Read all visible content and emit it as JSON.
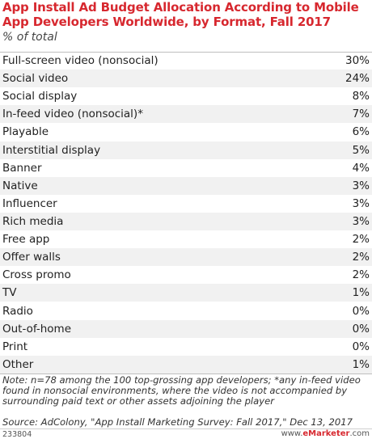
{
  "title": "App Install Ad Budget Allocation According to Mobile App Developers Worldwide, by Format, Fall 2017",
  "subtitle": "% of total",
  "chart_data": {
    "type": "table",
    "title": "App Install Ad Budget Allocation According to Mobile App Developers Worldwide, by Format, Fall 2017",
    "subtitle": "% of total",
    "unit": "%",
    "categories": [
      "Full-screen video (nonsocial)",
      "Social video",
      "Social display",
      "In-feed video (nonsocial)*",
      "Playable",
      "Interstitial display",
      "Banner",
      "Native",
      "Influencer",
      "Rich media",
      "Free app",
      "Offer walls",
      "Cross promo",
      "TV",
      "Radio",
      "Out-of-home",
      "Print",
      "Other"
    ],
    "values": [
      30,
      24,
      8,
      7,
      6,
      5,
      4,
      3,
      3,
      3,
      2,
      2,
      2,
      1,
      0,
      0,
      0,
      1
    ],
    "rows": [
      {
        "label": "Full-screen video (nonsocial)",
        "value": "30%"
      },
      {
        "label": "Social video",
        "value": "24%"
      },
      {
        "label": "Social display",
        "value": "8%"
      },
      {
        "label": "In-feed video (nonsocial)*",
        "value": "7%"
      },
      {
        "label": "Playable",
        "value": "6%"
      },
      {
        "label": "Interstitial display",
        "value": "5%"
      },
      {
        "label": "Banner",
        "value": "4%"
      },
      {
        "label": "Native",
        "value": "3%"
      },
      {
        "label": "Influencer",
        "value": "3%"
      },
      {
        "label": "Rich media",
        "value": "3%"
      },
      {
        "label": "Free app",
        "value": "2%"
      },
      {
        "label": "Offer walls",
        "value": "2%"
      },
      {
        "label": "Cross promo",
        "value": "2%"
      },
      {
        "label": "TV",
        "value": "1%"
      },
      {
        "label": "Radio",
        "value": "0%"
      },
      {
        "label": "Out-of-home",
        "value": "0%"
      },
      {
        "label": "Print",
        "value": "0%"
      },
      {
        "label": "Other",
        "value": "1%"
      }
    ]
  },
  "note": "Note: n=78 among the 100 top-grossing app developers; *any in-feed video found in nonsocial environments, where the video is not accompanied by surrounding paid text or other assets adjoining the player",
  "source": "Source: AdColony, \"App Install Marketing Survey: Fall 2017,\" Dec 13, 2017",
  "footer": {
    "chart_id": "233804",
    "site_prefix": "www.",
    "site_brand": "eMarketer",
    "site_suffix": ".com"
  },
  "colors": {
    "title": "#d7282f",
    "row_shade": "#f1f1f1"
  }
}
